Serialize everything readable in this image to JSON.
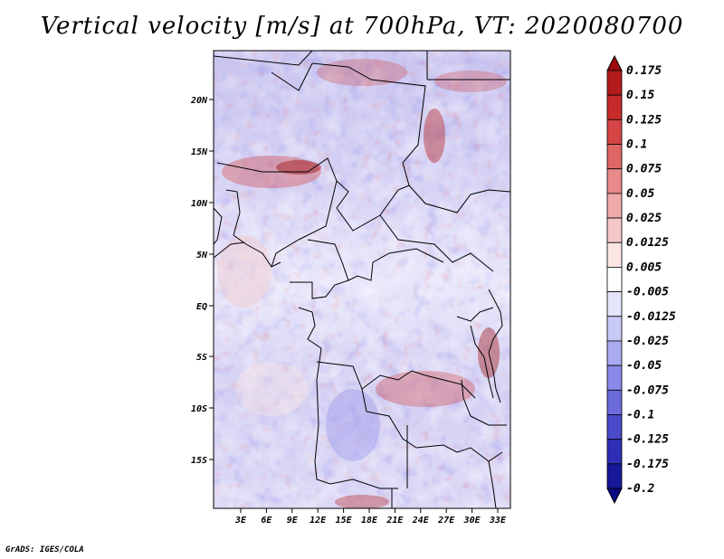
{
  "title": "Vertical velocity [m/s] at 700hPa, VT: 2020080700",
  "credit": "GrADS: IGES/COLA",
  "map": {
    "lat_labels": [
      "20N",
      "15N",
      "10N",
      "5N",
      "EQ",
      "5S",
      "10S",
      "15S"
    ],
    "lon_labels": [
      "3E",
      "6E",
      "9E",
      "12E",
      "15E",
      "18E",
      "21E",
      "24E",
      "27E",
      "30E",
      "33E"
    ]
  },
  "colorbar": {
    "levels": [
      "0.175",
      "0.15",
      "0.125",
      "0.1",
      "0.075",
      "0.05",
      "0.025",
      "0.0125",
      "0.005",
      "-0.005",
      "-0.0125",
      "-0.025",
      "-0.05",
      "-0.075",
      "-0.1",
      "-0.125",
      "-0.175",
      "-0.2"
    ],
    "colors": [
      "#9e0d0d",
      "#b31a1a",
      "#c62a2a",
      "#d64545",
      "#e06666",
      "#e88a8a",
      "#efaaaa",
      "#f5c8c8",
      "#fbe5e5",
      "#ffffff",
      "#e4e4fb",
      "#c9c9f5",
      "#aaaaf0",
      "#8a8ae8",
      "#6b6bdc",
      "#4a4acb",
      "#2e2eb5",
      "#17179a",
      "#0a0a85"
    ]
  }
}
